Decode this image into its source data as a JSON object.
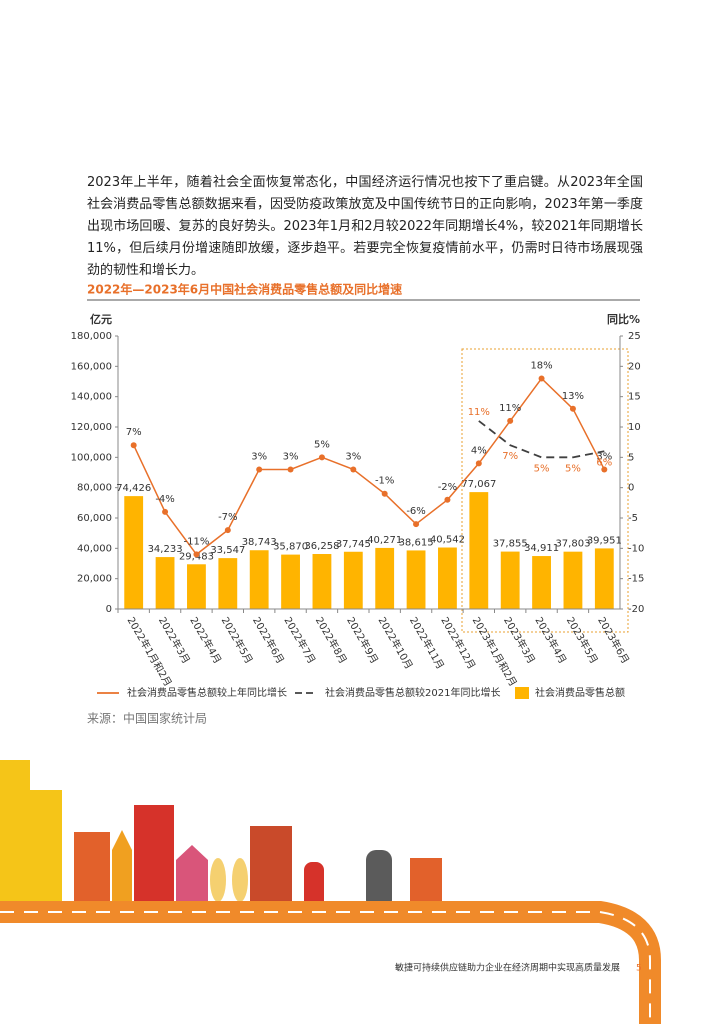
{
  "body": {
    "paragraph": "2023年上半年，随着社会全面恢复常态化，中国经济运行情况也按下了重启键。从2023年全国社会消费品零售总额数据来看，因受防疫政策放宽及中国传统节日的正向影响，2023年第一季度出现市场回暖、复苏的良好势头。2023年1月和2月较2022年同期增长4%，较2021年同期增长11%，但后续月份增速随即放缓，逐步趋平。若要完全恢复疫情前水平，仍需时日待市场展现强劲的韧性和增长力。"
  },
  "chart_data": {
    "type": "bar",
    "title": "2022年—2023年6月中国社会消费品零售总额及同比增速",
    "ylabel": "亿元",
    "y2label": "同比%",
    "categories": [
      "2022年1月和2月",
      "2022年3月",
      "2022年4月",
      "2022年5月",
      "2022年6月",
      "2022年7月",
      "2022年8月",
      "2022年9月",
      "2022年10月",
      "2022年11月",
      "2022年12月",
      "2023年1月和2月",
      "2023年3月",
      "2023年4月",
      "2023年5月",
      "2023年6月"
    ],
    "series": [
      {
        "name": "社会消费品零售总额较上年同比增长",
        "type": "line",
        "axis": "y2",
        "color": "#e8702a",
        "line_style": "solid",
        "values": [
          7,
          -4,
          -11,
          -7,
          3,
          3,
          5,
          3,
          -1,
          -6,
          -2,
          4,
          11,
          18,
          13,
          3
        ],
        "value_labels": [
          "7%",
          "-4%",
          "-11%",
          "-7%",
          "3%",
          "3%",
          "5%",
          "3%",
          "-1%",
          "-6%",
          "-2%",
          "4%",
          "11%",
          "18%",
          "13%",
          "3%"
        ]
      },
      {
        "name": "社会消费品零售总额较2021年同比增长",
        "type": "line",
        "axis": "y2",
        "color": "#404040",
        "label_color": "#e8702a",
        "line_style": "dashed",
        "values": [
          null,
          null,
          null,
          null,
          null,
          null,
          null,
          null,
          null,
          null,
          null,
          11,
          7,
          5,
          5,
          6
        ],
        "value_labels": [
          null,
          null,
          null,
          null,
          null,
          null,
          null,
          null,
          null,
          null,
          null,
          "11%",
          "7%",
          "5%",
          "5%",
          "6%"
        ]
      },
      {
        "name": "社会消费品零售总额",
        "type": "bar",
        "color": "#ffb400",
        "values": [
          74426,
          34233,
          29483,
          33547,
          38743,
          35870,
          36258,
          37745,
          40271,
          38615,
          40542,
          77067,
          37855,
          34911,
          37803,
          39951
        ],
        "value_labels": [
          "74,426",
          "34,233",
          "29,483",
          "33,547",
          "38,743",
          "35,870",
          "36,258",
          "37,745",
          "40,271",
          "38,615",
          "40,542",
          "77,067",
          "37,855",
          "34,911",
          "37,803",
          "39,951"
        ]
      }
    ],
    "ylim": [
      0,
      180000
    ],
    "yticks": [
      0,
      {
        "value": 20000,
        "label": "20,000"
      },
      {
        "value": 40000,
        "label": "40,000"
      },
      {
        "value": 60000,
        "label": "60,000"
      },
      {
        "value": 80000,
        "label": "80,000"
      },
      {
        "value": 100000,
        "label": "100,000"
      },
      {
        "value": 120000,
        "label": "120,000"
      },
      {
        "value": 140000,
        "label": "140,000"
      },
      {
        "value": 160000,
        "label": "160,000"
      },
      {
        "value": 180000,
        "label": "180,000"
      }
    ],
    "y2lim": [
      -20,
      25
    ],
    "y2ticks": [
      -20,
      -15,
      -10,
      -5,
      0,
      5,
      10,
      15,
      20,
      25
    ],
    "legend": "bottom",
    "grid": false
  },
  "source": "来源：中国国家统计局",
  "footer": {
    "text": "敏捷可持续供应链助力企业在经济周期中实现高质量发展",
    "page": 5
  }
}
